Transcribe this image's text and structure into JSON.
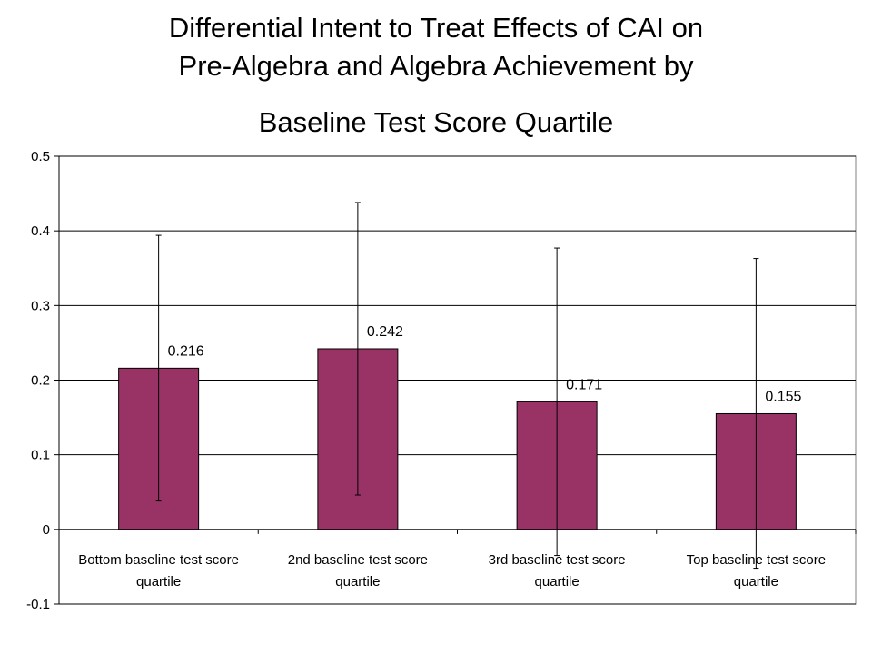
{
  "chart_data": {
    "type": "bar",
    "title_lines": [
      "Differential Intent to Treat Effects of CAI on",
      "Pre-Algebra and Algebra Achievement by",
      "Baseline Test Score Quartile"
    ],
    "categories": [
      [
        "Bottom baseline test score",
        "quartile"
      ],
      [
        "2nd baseline test score",
        "quartile"
      ],
      [
        "3rd baseline test score",
        "quartile"
      ],
      [
        "Top baseline test score",
        "quartile"
      ]
    ],
    "values": [
      0.216,
      0.242,
      0.171,
      0.155
    ],
    "data_labels": [
      "0.216",
      "0.242",
      "0.171",
      "0.155"
    ],
    "error_low": [
      0.038,
      0.046,
      -0.035,
      -0.052
    ],
    "error_high": [
      0.394,
      0.438,
      0.377,
      0.363
    ],
    "ylim": [
      -0.1,
      0.5
    ],
    "yticks": [
      -0.1,
      0,
      0.1,
      0.2,
      0.3,
      0.4,
      0.5
    ],
    "ytick_labels": [
      "-0.1",
      "0",
      "0.1",
      "0.2",
      "0.3",
      "0.4",
      "0.5"
    ],
    "grid": true,
    "bar_color": "#993366",
    "xlabel": "",
    "ylabel": ""
  }
}
